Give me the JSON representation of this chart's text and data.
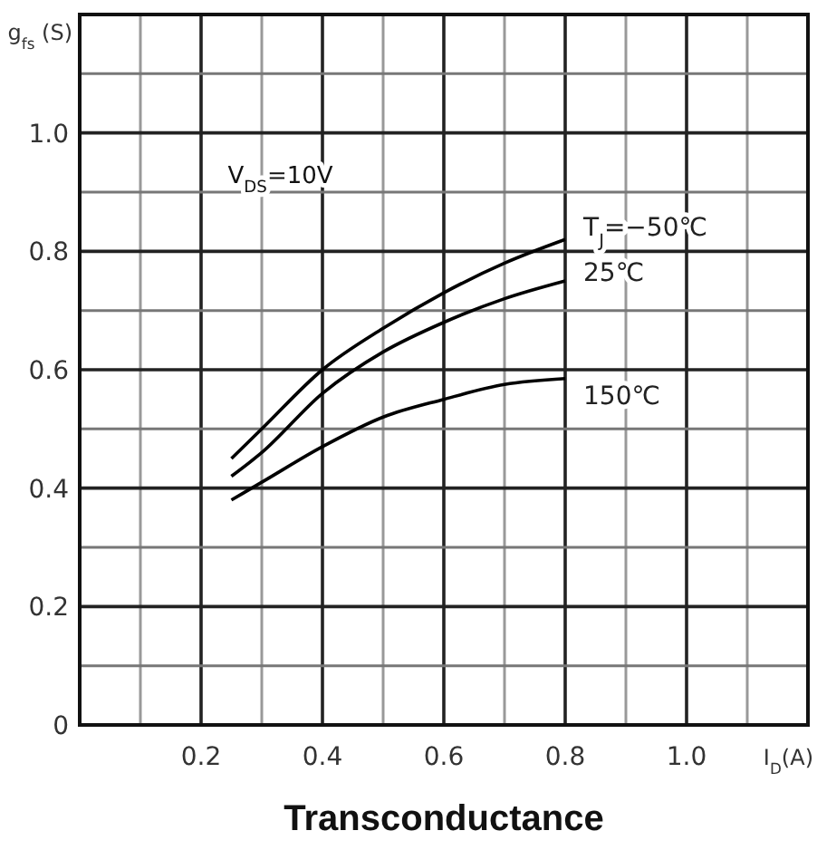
{
  "chart_data": {
    "type": "line",
    "title": "Transconductance",
    "xlabel": "I$_{D}$(A)",
    "ylabel": "g$_{fs}$ (S)",
    "annotations": [
      "V$_{DS}$=10V"
    ],
    "x": [
      0.25,
      0.3,
      0.4,
      0.5,
      0.6,
      0.7,
      0.8
    ],
    "series": [
      {
        "name": "T$_{J}$=−50℃",
        "color": "#000000",
        "values": [
          0.45,
          0.5,
          0.6,
          0.67,
          0.73,
          0.78,
          0.82
        ]
      },
      {
        "name": "25℃",
        "color": "#000000",
        "values": [
          0.42,
          0.46,
          0.56,
          0.63,
          0.68,
          0.72,
          0.75
        ]
      },
      {
        "name": "150℃",
        "color": "#000000",
        "values": [
          0.38,
          0.41,
          0.47,
          0.52,
          0.55,
          0.575,
          0.585
        ]
      }
    ],
    "xlim": [
      0,
      1.2
    ],
    "ylim": [
      0,
      1.2
    ],
    "xticks": [
      {
        "value": 0.1,
        "label": null
      },
      0.2,
      {
        "value": 0.3,
        "label": null
      },
      0.4,
      {
        "value": 0.5,
        "label": null
      },
      0.6,
      {
        "value": 0.7,
        "label": null
      },
      0.8,
      {
        "value": 0.9,
        "label": null
      },
      {
        "value": 1.0,
        "label": "1.0"
      },
      {
        "value": 1.1,
        "label": null
      }
    ],
    "yticks": [
      0,
      {
        "value": 0.1,
        "label": null
      },
      0.2,
      {
        "value": 0.3,
        "label": null
      },
      0.4,
      {
        "value": 0.5,
        "label": null
      },
      0.6,
      {
        "value": 0.7,
        "label": null
      },
      0.8,
      {
        "value": 0.9,
        "label": null
      },
      {
        "value": 1.0,
        "label": "1.0"
      },
      {
        "value": 1.1,
        "label": null
      }
    ],
    "grid": true,
    "legend": false,
    "marker": "none",
    "line_style": "solid"
  }
}
